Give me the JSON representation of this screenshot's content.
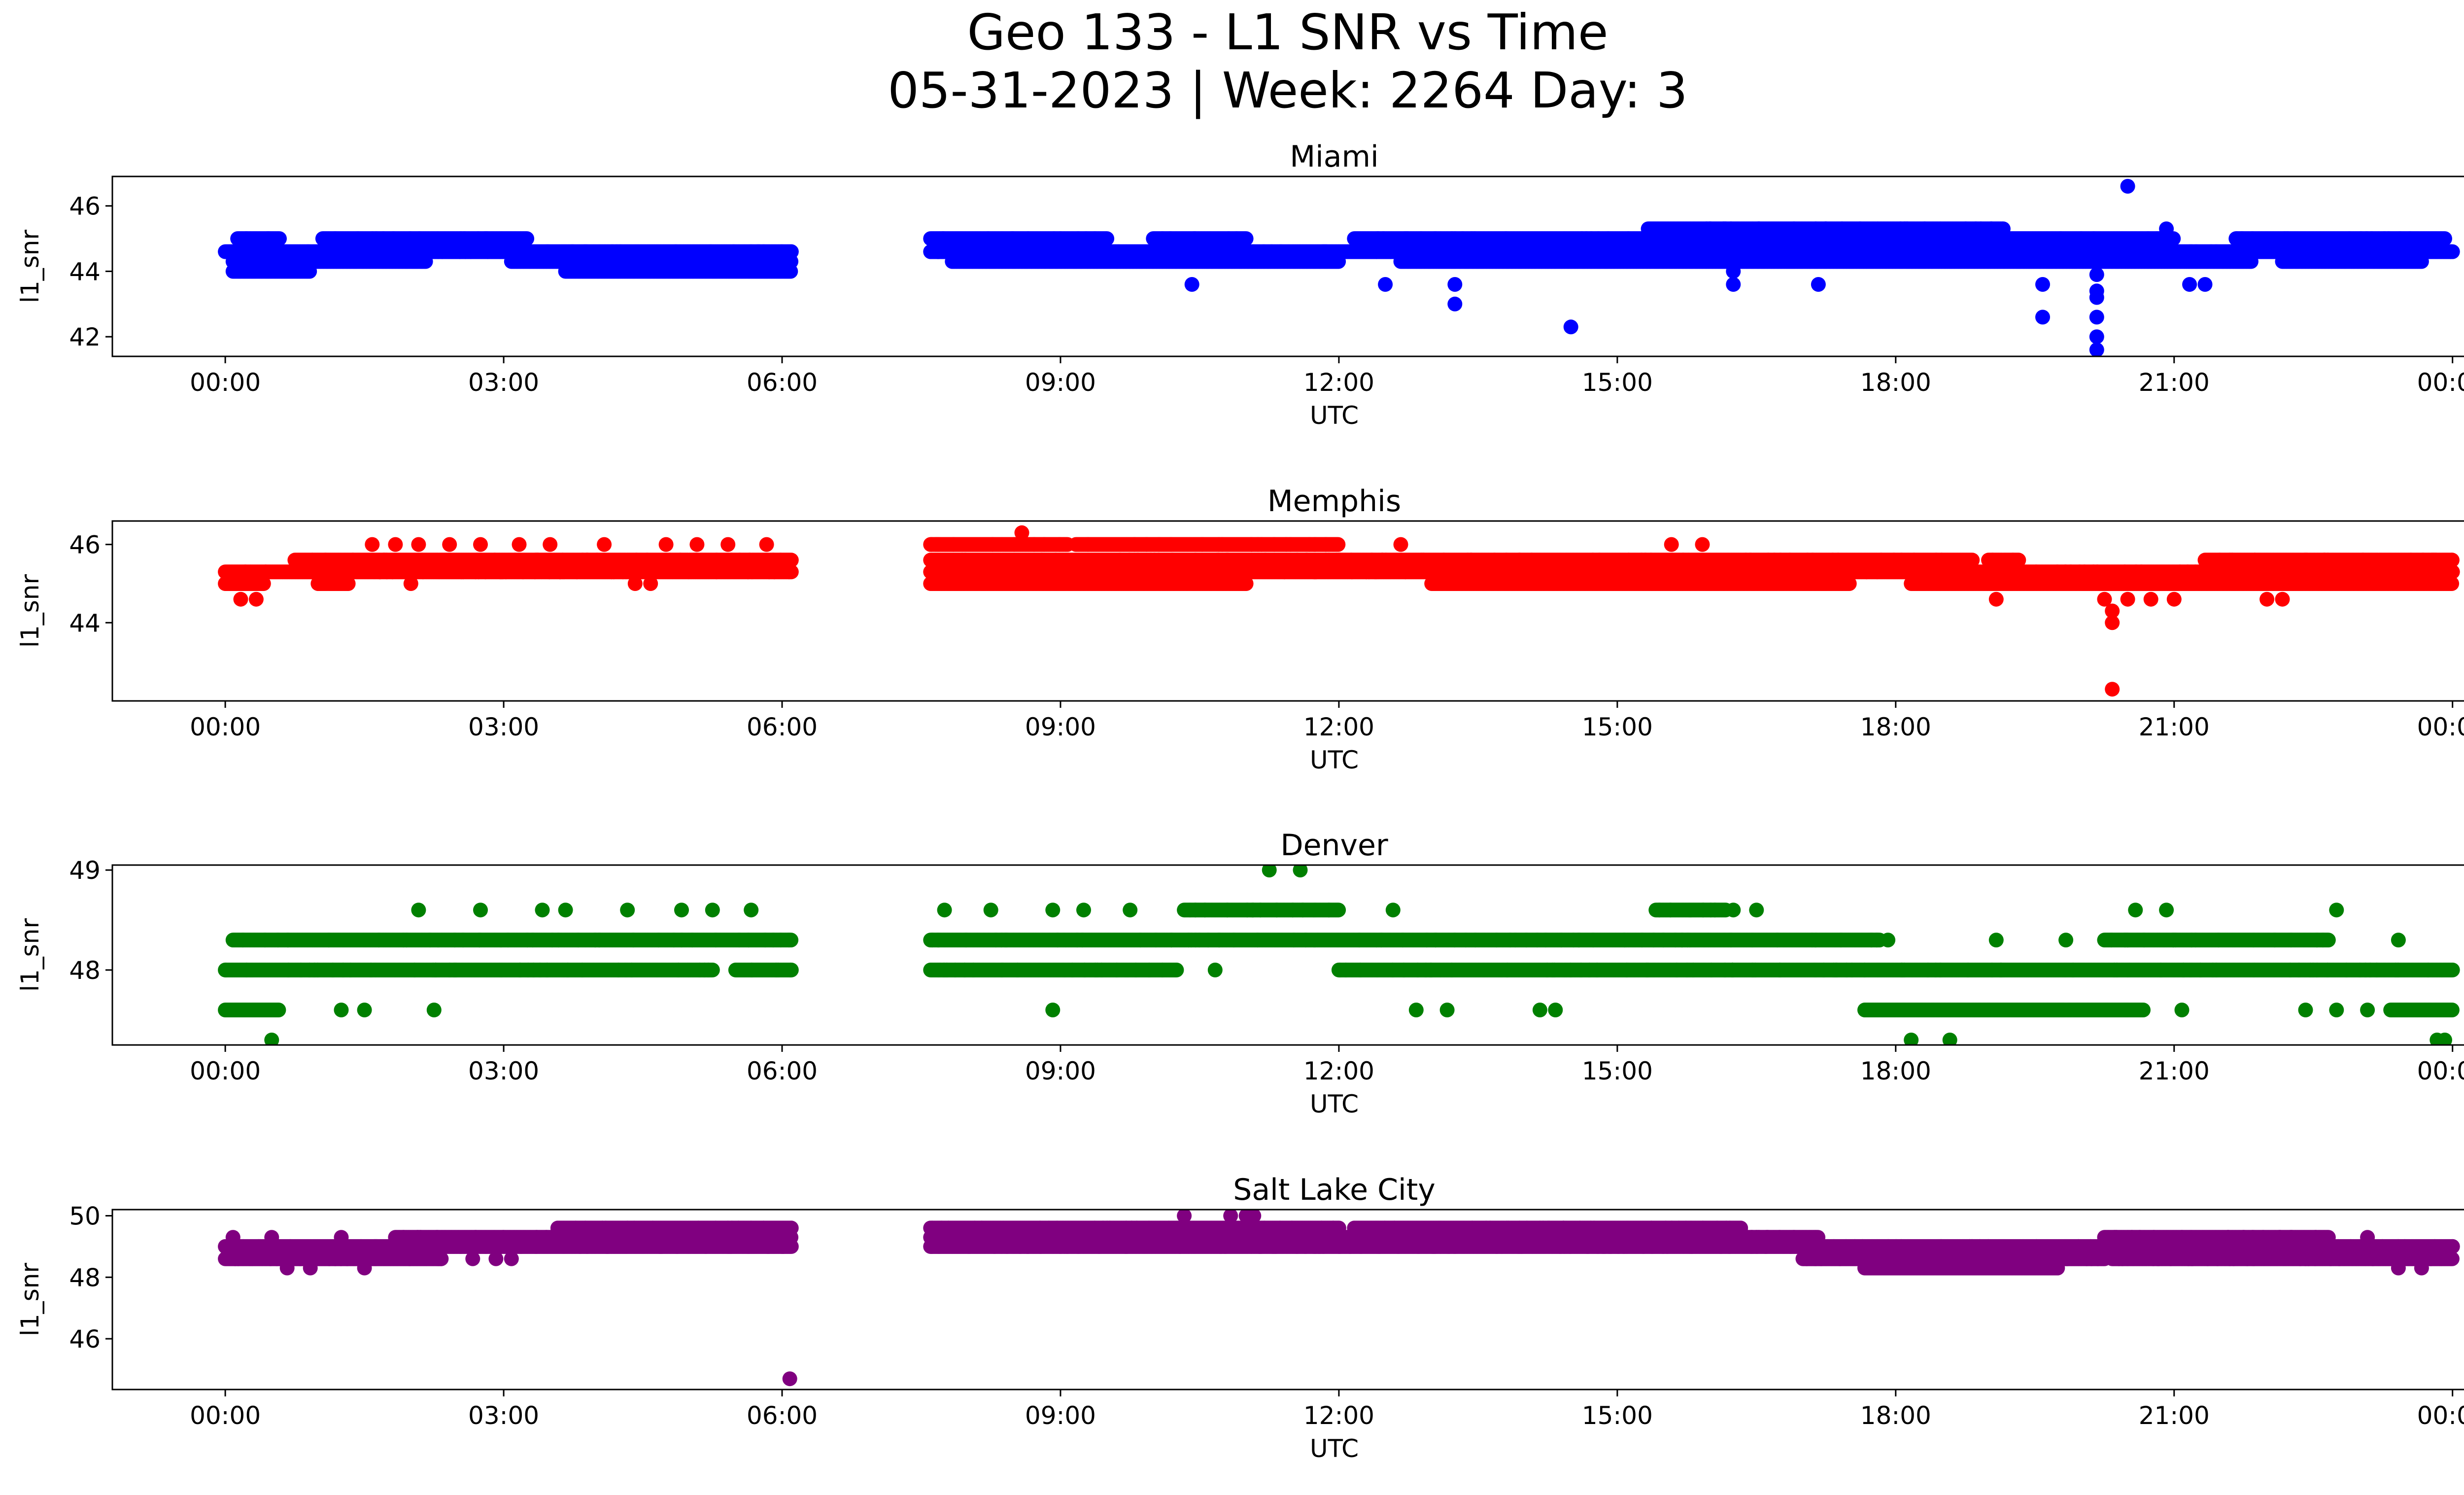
{
  "figure": {
    "title_line1": "Geo 133 - L1 SNR vs Time",
    "title_line2": "05-31-2023 | Week: 2264 Day: 3"
  },
  "chart_data": [
    {
      "type": "scatter",
      "title": "Miami",
      "xlabel": "UTC",
      "ylabel": "l1_snr",
      "color": "#0000ff",
      "xlim": [
        "-01:13",
        "25:07"
      ],
      "ylim": [
        41.4,
        46.9
      ],
      "x_ticks": [
        "00:00",
        "03:00",
        "06:00",
        "09:00",
        "12:00",
        "15:00",
        "18:00",
        "21:00",
        "00:00"
      ],
      "y_ticks": [
        42,
        44,
        46
      ],
      "data_gap": [
        "06:06",
        "07:36"
      ],
      "levels": [
        {
          "y": 45.0,
          "segments": [
            [
              "00:08",
              "00:35"
            ],
            [
              "01:03",
              "03:15"
            ],
            [
              "07:36",
              "09:30"
            ],
            [
              "10:00",
              "11:00"
            ],
            [
              "12:10",
              "21:00"
            ],
            [
              "21:40",
              "23:55"
            ]
          ]
        },
        {
          "y": 44.6,
          "segments": [
            [
              "00:00",
              "06:06"
            ],
            [
              "07:36",
              "24:00"
            ]
          ]
        },
        {
          "y": 44.3,
          "segments": [
            [
              "00:05",
              "02:10"
            ],
            [
              "03:05",
              "06:06"
            ],
            [
              "07:50",
              "12:00"
            ],
            [
              "12:40",
              "21:50"
            ],
            [
              "22:10",
              "23:40"
            ]
          ]
        },
        {
          "y": 44.0,
          "segments": [
            [
              "00:05",
              "00:55"
            ],
            [
              "03:40",
              "06:06"
            ]
          ]
        },
        {
          "y": 45.3,
          "segments": [
            [
              "15:20",
              "19:10"
            ]
          ]
        }
      ],
      "outliers": [
        {
          "x": "10:25",
          "y": 43.6
        },
        {
          "x": "12:30",
          "y": 43.6
        },
        {
          "x": "13:15",
          "y": 43.6
        },
        {
          "x": "13:15",
          "y": 43.0
        },
        {
          "x": "14:30",
          "y": 42.3
        },
        {
          "x": "16:15",
          "y": 44.0
        },
        {
          "x": "16:15",
          "y": 43.6
        },
        {
          "x": "17:10",
          "y": 43.6
        },
        {
          "x": "19:35",
          "y": 43.6
        },
        {
          "x": "19:35",
          "y": 42.6
        },
        {
          "x": "20:10",
          "y": 43.9
        },
        {
          "x": "20:10",
          "y": 43.4
        },
        {
          "x": "20:10",
          "y": 43.2
        },
        {
          "x": "20:10",
          "y": 42.6
        },
        {
          "x": "20:10",
          "y": 42.0
        },
        {
          "x": "20:10",
          "y": 41.6
        },
        {
          "x": "20:30",
          "y": 46.6
        },
        {
          "x": "20:55",
          "y": 45.3
        },
        {
          "x": "21:10",
          "y": 43.6
        },
        {
          "x": "21:20",
          "y": 43.6
        }
      ]
    },
    {
      "type": "scatter",
      "title": "Memphis",
      "xlabel": "UTC",
      "ylabel": "l1_snr",
      "color": "#ff0000",
      "xlim": [
        "-01:13",
        "25:07"
      ],
      "ylim": [
        42.0,
        46.6
      ],
      "x_ticks": [
        "00:00",
        "03:00",
        "06:00",
        "09:00",
        "12:00",
        "15:00",
        "18:00",
        "21:00",
        "00:00"
      ],
      "y_ticks": [
        44,
        46
      ],
      "data_gap": [
        "06:06",
        "07:36"
      ],
      "levels": [
        {
          "y": 46.0,
          "segments": [
            [
              "07:36",
              "09:05"
            ],
            [
              "09:10",
              "12:00"
            ]
          ]
        },
        {
          "y": 45.6,
          "segments": [
            [
              "00:45",
              "06:06"
            ],
            [
              "07:36",
              "18:50"
            ],
            [
              "19:00",
              "19:20"
            ],
            [
              "21:20",
              "24:00"
            ]
          ]
        },
        {
          "y": 45.3,
          "segments": [
            [
              "00:00",
              "06:06"
            ],
            [
              "07:36",
              "24:00"
            ]
          ]
        },
        {
          "y": 45.0,
          "segments": [
            [
              "00:00",
              "00:25"
            ],
            [
              "01:00",
              "01:20"
            ],
            [
              "07:36",
              "11:00"
            ],
            [
              "13:00",
              "17:30"
            ],
            [
              "18:10",
              "24:00"
            ]
          ]
        }
      ],
      "outliers": [
        {
          "x": "00:10",
          "y": 44.6
        },
        {
          "x": "00:20",
          "y": 44.6
        },
        {
          "x": "01:35",
          "y": 46.0
        },
        {
          "x": "01:50",
          "y": 46.0
        },
        {
          "x": "02:05",
          "y": 46.0
        },
        {
          "x": "02:25",
          "y": 46.0
        },
        {
          "x": "02:45",
          "y": 46.0
        },
        {
          "x": "03:10",
          "y": 46.0
        },
        {
          "x": "03:30",
          "y": 46.0
        },
        {
          "x": "04:05",
          "y": 46.0
        },
        {
          "x": "04:45",
          "y": 46.0
        },
        {
          "x": "05:05",
          "y": 46.0
        },
        {
          "x": "05:25",
          "y": 46.0
        },
        {
          "x": "05:50",
          "y": 46.0
        },
        {
          "x": "04:25",
          "y": 45.0
        },
        {
          "x": "04:35",
          "y": 45.0
        },
        {
          "x": "02:00",
          "y": 45.0
        },
        {
          "x": "08:35",
          "y": 46.3
        },
        {
          "x": "12:40",
          "y": 46.0
        },
        {
          "x": "15:35",
          "y": 46.0
        },
        {
          "x": "15:55",
          "y": 46.0
        },
        {
          "x": "19:05",
          "y": 44.6
        },
        {
          "x": "20:15",
          "y": 44.6
        },
        {
          "x": "20:30",
          "y": 44.6
        },
        {
          "x": "20:45",
          "y": 44.6
        },
        {
          "x": "21:00",
          "y": 44.6
        },
        {
          "x": "22:00",
          "y": 44.6
        },
        {
          "x": "22:10",
          "y": 44.6
        },
        {
          "x": "20:20",
          "y": 44.3
        },
        {
          "x": "20:20",
          "y": 44.0
        },
        {
          "x": "20:20",
          "y": 42.3
        }
      ]
    },
    {
      "type": "scatter",
      "title": "Denver",
      "xlabel": "UTC",
      "ylabel": "l1_snr",
      "color": "#008000",
      "xlim": [
        "-01:13",
        "25:07"
      ],
      "ylim": [
        47.25,
        49.05
      ],
      "x_ticks": [
        "00:00",
        "03:00",
        "06:00",
        "09:00",
        "12:00",
        "15:00",
        "18:00",
        "21:00",
        "00:00"
      ],
      "y_ticks": [
        48,
        49
      ],
      "data_gap": [
        "06:06",
        "07:36"
      ],
      "levels": [
        {
          "y": 48.3,
          "segments": [
            [
              "00:05",
              "06:06"
            ],
            [
              "07:36",
              "17:50"
            ],
            [
              "20:15",
              "22:40"
            ]
          ]
        },
        {
          "y": 48.0,
          "segments": [
            [
              "00:00",
              "05:15"
            ],
            [
              "05:30",
              "06:06"
            ],
            [
              "07:36",
              "10:15"
            ],
            [
              "12:00",
              "24:00"
            ]
          ]
        },
        {
          "y": 48.6,
          "segments": [
            [
              "10:20",
              "12:00"
            ],
            [
              "15:25",
              "16:10"
            ]
          ]
        },
        {
          "y": 47.6,
          "segments": [
            [
              "00:00",
              "00:35"
            ],
            [
              "17:40",
              "20:40"
            ],
            [
              "23:20",
              "24:00"
            ]
          ]
        }
      ],
      "outliers": [
        {
          "x": "00:30",
          "y": 47.3
        },
        {
          "x": "01:15",
          "y": 47.6
        },
        {
          "x": "01:30",
          "y": 47.6
        },
        {
          "x": "02:15",
          "y": 47.6
        },
        {
          "x": "02:05",
          "y": 48.6
        },
        {
          "x": "02:45",
          "y": 48.6
        },
        {
          "x": "03:25",
          "y": 48.6
        },
        {
          "x": "03:40",
          "y": 48.6
        },
        {
          "x": "04:20",
          "y": 48.6
        },
        {
          "x": "04:55",
          "y": 48.6
        },
        {
          "x": "05:15",
          "y": 48.6
        },
        {
          "x": "05:40",
          "y": 48.6
        },
        {
          "x": "07:45",
          "y": 48.6
        },
        {
          "x": "08:15",
          "y": 48.6
        },
        {
          "x": "08:55",
          "y": 48.6
        },
        {
          "x": "09:15",
          "y": 48.6
        },
        {
          "x": "09:45",
          "y": 48.6
        },
        {
          "x": "08:55",
          "y": 47.6
        },
        {
          "x": "10:40",
          "y": 48.0
        },
        {
          "x": "11:15",
          "y": 49.0
        },
        {
          "x": "11:35",
          "y": 49.0
        },
        {
          "x": "12:35",
          "y": 48.6
        },
        {
          "x": "12:50",
          "y": 47.6
        },
        {
          "x": "13:10",
          "y": 47.6
        },
        {
          "x": "14:10",
          "y": 47.6
        },
        {
          "x": "14:20",
          "y": 47.6
        },
        {
          "x": "16:30",
          "y": 48.6
        },
        {
          "x": "16:15",
          "y": 48.6
        },
        {
          "x": "18:10",
          "y": 47.3
        },
        {
          "x": "18:35",
          "y": 47.3
        },
        {
          "x": "17:55",
          "y": 48.3
        },
        {
          "x": "19:05",
          "y": 48.3
        },
        {
          "x": "19:50",
          "y": 48.3
        },
        {
          "x": "20:35",
          "y": 48.6
        },
        {
          "x": "20:55",
          "y": 48.6
        },
        {
          "x": "22:45",
          "y": 48.6
        },
        {
          "x": "21:05",
          "y": 47.6
        },
        {
          "x": "22:25",
          "y": 47.6
        },
        {
          "x": "22:45",
          "y": 47.6
        },
        {
          "x": "23:05",
          "y": 47.6
        },
        {
          "x": "23:25",
          "y": 48.3
        },
        {
          "x": "23:55",
          "y": 47.3
        },
        {
          "x": "23:50",
          "y": 47.3
        }
      ]
    },
    {
      "type": "scatter",
      "title": "Salt Lake City",
      "xlabel": "UTC",
      "ylabel": "l1_snr",
      "color": "#800080",
      "xlim": [
        "-01:13",
        "25:07"
      ],
      "ylim": [
        44.35,
        50.2
      ],
      "x_ticks": [
        "00:00",
        "03:00",
        "06:00",
        "09:00",
        "12:00",
        "15:00",
        "18:00",
        "21:00",
        "00:00"
      ],
      "y_ticks": [
        46,
        48,
        50
      ],
      "data_gap": [
        "06:06",
        "07:36"
      ],
      "levels": [
        {
          "y": 49.6,
          "segments": [
            [
              "03:35",
              "06:06"
            ],
            [
              "07:36",
              "12:00"
            ],
            [
              "12:10",
              "16:20"
            ]
          ]
        },
        {
          "y": 49.3,
          "segments": [
            [
              "01:50",
              "06:06"
            ],
            [
              "07:36",
              "17:10"
            ],
            [
              "20:15",
              "22:40"
            ]
          ]
        },
        {
          "y": 49.0,
          "segments": [
            [
              "00:00",
              "06:06"
            ],
            [
              "07:36",
              "24:00"
            ]
          ]
        },
        {
          "y": 48.6,
          "segments": [
            [
              "00:00",
              "02:20"
            ],
            [
              "17:00",
              "20:15"
            ],
            [
              "20:20",
              "24:00"
            ]
          ]
        },
        {
          "y": 48.3,
          "segments": [
            [
              "17:40",
              "19:45"
            ]
          ]
        }
      ],
      "outliers": [
        {
          "x": "00:05",
          "y": 49.3
        },
        {
          "x": "00:30",
          "y": 49.3
        },
        {
          "x": "00:40",
          "y": 48.3
        },
        {
          "x": "00:55",
          "y": 48.3
        },
        {
          "x": "01:15",
          "y": 49.3
        },
        {
          "x": "01:30",
          "y": 48.3
        },
        {
          "x": "02:40",
          "y": 48.6
        },
        {
          "x": "02:55",
          "y": 48.6
        },
        {
          "x": "03:05",
          "y": 48.6
        },
        {
          "x": "06:05",
          "y": 44.7
        },
        {
          "x": "09:25",
          "y": 49.0
        },
        {
          "x": "10:20",
          "y": 50.0
        },
        {
          "x": "10:50",
          "y": 50.0
        },
        {
          "x": "11:05",
          "y": 50.0
        },
        {
          "x": "11:00",
          "y": 50.0
        },
        {
          "x": "13:15",
          "y": 49.0
        },
        {
          "x": "14:25",
          "y": 49.6
        },
        {
          "x": "14:45",
          "y": 49.6
        },
        {
          "x": "21:05",
          "y": 49.3
        },
        {
          "x": "21:35",
          "y": 49.3
        },
        {
          "x": "22:25",
          "y": 48.6
        },
        {
          "x": "23:05",
          "y": 49.3
        },
        {
          "x": "23:25",
          "y": 48.3
        },
        {
          "x": "23:40",
          "y": 48.3
        }
      ]
    }
  ]
}
